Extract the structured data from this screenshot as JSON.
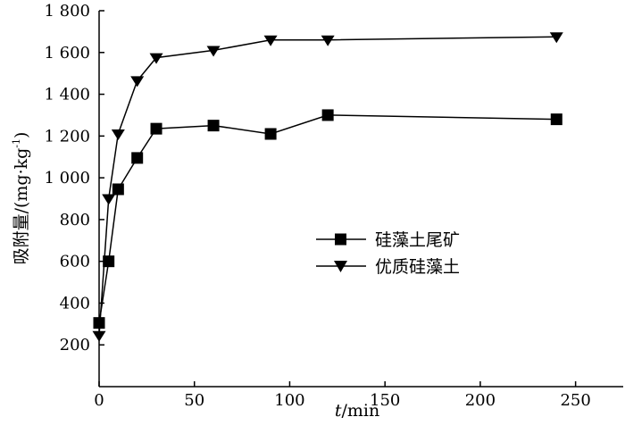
{
  "chart_data": {
    "type": "line",
    "title": "",
    "xlabel_italic": "t",
    "xlabel_rest": "/min",
    "ylabel_main": "吸附量/(mg·kg",
    "ylabel_sup": "-1",
    "ylabel_close": ")",
    "xlim": [
      0,
      275
    ],
    "ylim": [
      0,
      1800
    ],
    "xticks": [
      0,
      50,
      100,
      150,
      200,
      250
    ],
    "yticks": [
      200,
      400,
      600,
      800,
      1000,
      1200,
      1400,
      1600,
      1800
    ],
    "ytick_labels": [
      "200",
      "400",
      "600",
      "800",
      "1 000",
      "1 200",
      "1 400",
      "1 600",
      "1 800"
    ],
    "series": [
      {
        "name": "硅藻土尾矿",
        "marker": "square",
        "x": [
          0,
          5,
          10,
          20,
          30,
          60,
          90,
          120,
          240
        ],
        "y": [
          305,
          600,
          945,
          1095,
          1235,
          1250,
          1210,
          1300,
          1280
        ]
      },
      {
        "name": "优质硅藻土",
        "marker": "triangle-down",
        "x": [
          0,
          5,
          10,
          20,
          30,
          60,
          90,
          120,
          240
        ],
        "y": [
          245,
          900,
          1210,
          1465,
          1575,
          1610,
          1660,
          1660,
          1675
        ]
      }
    ],
    "legend_position": "center-right",
    "grid": false
  }
}
